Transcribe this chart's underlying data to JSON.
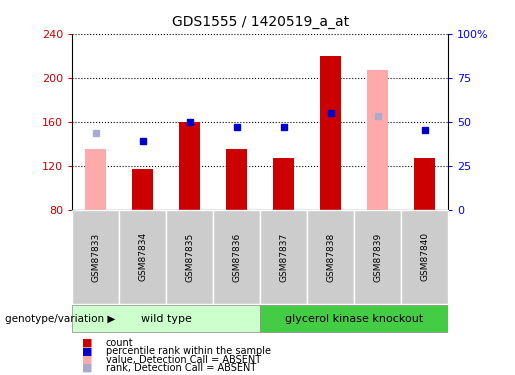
{
  "title": "GDS1555 / 1420519_a_at",
  "samples": [
    "GSM87833",
    "GSM87834",
    "GSM87835",
    "GSM87836",
    "GSM87837",
    "GSM87838",
    "GSM87839",
    "GSM87840"
  ],
  "count_values": [
    135,
    117,
    160,
    135,
    127,
    220,
    207,
    127
  ],
  "rank_values": [
    150,
    143,
    160,
    155,
    155,
    168,
    165,
    153
  ],
  "count_absent": [
    true,
    false,
    false,
    false,
    false,
    false,
    true,
    false
  ],
  "rank_absent": [
    true,
    false,
    false,
    false,
    false,
    false,
    true,
    false
  ],
  "ymin": 80,
  "ymax": 240,
  "y2min": 0,
  "y2max": 100,
  "yticks": [
    80,
    120,
    160,
    200,
    240
  ],
  "y2ticks": [
    0,
    25,
    50,
    75,
    100
  ],
  "y2ticklabels": [
    "0",
    "25",
    "50",
    "75",
    "100%"
  ],
  "wild_type_label": "wild type",
  "knockout_label": "glycerol kinase knockout",
  "genotype_label": "genotype/variation",
  "color_red_bar": "#cc0000",
  "color_pink_bar": "#ffaaaa",
  "color_blue_sq": "#0000cc",
  "color_lightblue_sq": "#aaaacc",
  "legend_items": [
    "count",
    "percentile rank within the sample",
    "value, Detection Call = ABSENT",
    "rank, Detection Call = ABSENT"
  ],
  "bar_width": 0.45,
  "wt_color": "#ccffcc",
  "ko_color": "#44cc44",
  "label_bg_color": "#cccccc"
}
